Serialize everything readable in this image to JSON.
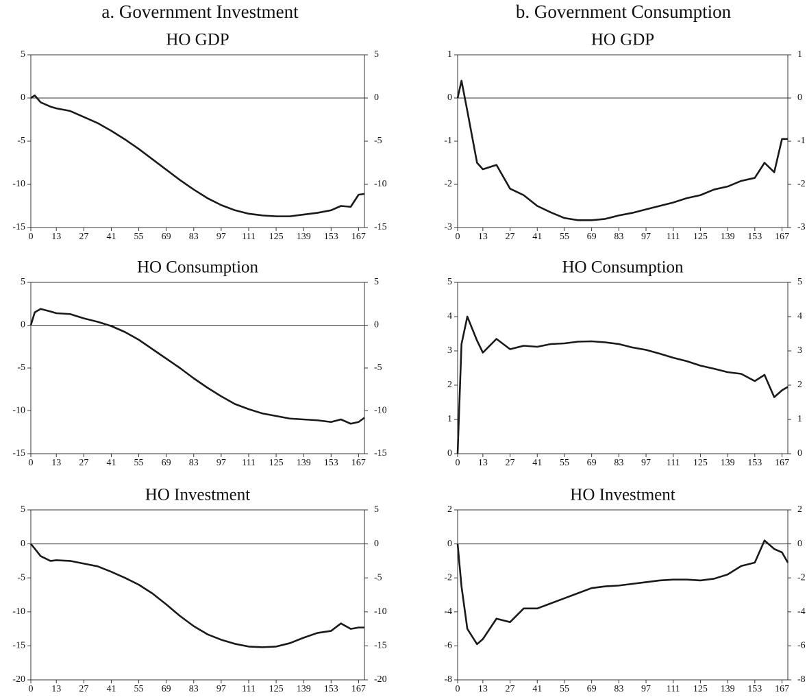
{
  "column_titles": [
    "a. Government Investment",
    "b. Government Consumption"
  ],
  "chart_data": [
    {
      "type": "line",
      "title": "HO GDP",
      "color": "#1a1a1a",
      "hline": 0,
      "x": [
        0,
        2,
        5,
        10,
        13,
        20,
        27,
        34,
        41,
        48,
        55,
        62,
        69,
        76,
        83,
        90,
        97,
        104,
        111,
        118,
        125,
        132,
        139,
        146,
        153,
        158,
        163,
        167,
        170
      ],
      "values": [
        0,
        0.3,
        -0.5,
        -1,
        -1.2,
        -1.5,
        -2.2,
        -2.9,
        -3.8,
        -4.8,
        -5.9,
        -7.1,
        -8.3,
        -9.5,
        -10.6,
        -11.6,
        -12.4,
        -13,
        -13.4,
        -13.6,
        -13.7,
        -13.7,
        -13.5,
        -13.3,
        -13,
        -12.5,
        -12.6,
        -11.2,
        -11.1
      ],
      "xlim": [
        0,
        170
      ],
      "xticks": [
        0,
        13,
        27,
        41,
        55,
        69,
        83,
        97,
        111,
        125,
        139,
        153,
        167
      ],
      "ylim": [
        -15,
        5
      ],
      "yticks": [
        -15,
        -10,
        -5,
        0,
        5
      ]
    },
    {
      "type": "line",
      "title": "HO Consumption",
      "color": "#1a1a1a",
      "hline": 0,
      "x": [
        0,
        2,
        5,
        10,
        13,
        20,
        27,
        34,
        41,
        48,
        55,
        62,
        69,
        76,
        83,
        90,
        97,
        104,
        111,
        118,
        125,
        132,
        139,
        146,
        153,
        158,
        163,
        167,
        170
      ],
      "values": [
        0,
        1.5,
        1.9,
        1.6,
        1.4,
        1.3,
        0.8,
        0.4,
        -0.1,
        -0.8,
        -1.7,
        -2.8,
        -3.9,
        -5,
        -6.2,
        -7.3,
        -8.3,
        -9.2,
        -9.8,
        -10.3,
        -10.6,
        -10.9,
        -11,
        -11.1,
        -11.3,
        -11,
        -11.5,
        -11.3,
        -10.8
      ],
      "xlim": [
        0,
        170
      ],
      "xticks": [
        0,
        13,
        27,
        41,
        55,
        69,
        83,
        97,
        111,
        125,
        139,
        153,
        167
      ],
      "ylim": [
        -15,
        5
      ],
      "yticks": [
        -15,
        -10,
        -5,
        0,
        5
      ]
    },
    {
      "type": "line",
      "title": "HO Investment",
      "color": "#1a1a1a",
      "hline": 0,
      "x": [
        0,
        2,
        5,
        10,
        13,
        20,
        27,
        34,
        41,
        48,
        55,
        62,
        69,
        76,
        83,
        90,
        97,
        104,
        111,
        118,
        125,
        132,
        139,
        146,
        153,
        158,
        163,
        167,
        170
      ],
      "values": [
        0,
        -0.7,
        -1.8,
        -2.5,
        -2.4,
        -2.5,
        -2.9,
        -3.3,
        -4.1,
        -5,
        -6,
        -7.3,
        -8.9,
        -10.6,
        -12.1,
        -13.3,
        -14.1,
        -14.7,
        -15.1,
        -15.2,
        -15.1,
        -14.6,
        -13.8,
        -13.1,
        -12.8,
        -11.7,
        -12.5,
        -12.3,
        -12.3
      ],
      "xlim": [
        0,
        170
      ],
      "xticks": [
        0,
        13,
        27,
        41,
        55,
        69,
        83,
        97,
        111,
        125,
        139,
        153,
        167
      ],
      "ylim": [
        -20,
        5
      ],
      "yticks": [
        -20,
        -15,
        -10,
        -5,
        0,
        5
      ]
    },
    {
      "type": "line",
      "title": "HO GDP",
      "color": "#1a1a1a",
      "hline": 0,
      "x": [
        0,
        2,
        5,
        10,
        13,
        20,
        27,
        34,
        41,
        48,
        55,
        62,
        69,
        76,
        83,
        90,
        97,
        104,
        111,
        118,
        125,
        132,
        139,
        146,
        153,
        158,
        163,
        167,
        170
      ],
      "values": [
        0,
        0.4,
        -0.3,
        -1.5,
        -1.65,
        -1.55,
        -2.1,
        -2.25,
        -2.5,
        -2.65,
        -2.78,
        -2.83,
        -2.83,
        -2.8,
        -2.72,
        -2.66,
        -2.58,
        -2.5,
        -2.42,
        -2.32,
        -2.25,
        -2.12,
        -2.05,
        -1.92,
        -1.85,
        -1.5,
        -1.72,
        -0.95,
        -0.95
      ],
      "xlim": [
        0,
        170
      ],
      "xticks": [
        0,
        13,
        27,
        41,
        55,
        69,
        83,
        97,
        111,
        125,
        139,
        153,
        167
      ],
      "ylim": [
        -3,
        1
      ],
      "yticks": [
        -3,
        -2,
        -1,
        0,
        1
      ]
    },
    {
      "type": "line",
      "title": "HO Consumption",
      "color": "#1a1a1a",
      "hline": 0,
      "x": [
        0,
        2,
        5,
        10,
        13,
        20,
        27,
        34,
        41,
        48,
        55,
        62,
        69,
        76,
        83,
        90,
        97,
        104,
        111,
        118,
        125,
        132,
        139,
        146,
        153,
        158,
        163,
        167,
        170
      ],
      "values": [
        0,
        3.2,
        4,
        3.3,
        2.95,
        3.35,
        3.05,
        3.15,
        3.12,
        3.2,
        3.22,
        3.27,
        3.28,
        3.25,
        3.2,
        3.1,
        3.03,
        2.92,
        2.8,
        2.7,
        2.57,
        2.48,
        2.38,
        2.33,
        2.12,
        2.3,
        1.65,
        1.85,
        1.95
      ],
      "xlim": [
        0,
        170
      ],
      "xticks": [
        0,
        13,
        27,
        41,
        55,
        69,
        83,
        97,
        111,
        125,
        139,
        153,
        167
      ],
      "ylim": [
        0,
        5
      ],
      "yticks": [
        0,
        1,
        2,
        3,
        4,
        5
      ]
    },
    {
      "type": "line",
      "title": "HO Investment",
      "color": "#1a1a1a",
      "hline": 0,
      "x": [
        0,
        2,
        5,
        10,
        13,
        20,
        27,
        34,
        41,
        48,
        55,
        62,
        69,
        76,
        83,
        90,
        97,
        104,
        111,
        118,
        125,
        132,
        139,
        146,
        153,
        158,
        163,
        167,
        170
      ],
      "values": [
        0,
        -2.5,
        -5,
        -5.9,
        -5.6,
        -4.4,
        -4.6,
        -3.8,
        -3.8,
        -3.5,
        -3.2,
        -2.9,
        -2.6,
        -2.5,
        -2.45,
        -2.35,
        -2.25,
        -2.15,
        -2.1,
        -2.1,
        -2.15,
        -2.05,
        -1.8,
        -1.3,
        -1.1,
        0.2,
        -0.3,
        -0.5,
        -1.1
      ],
      "xlim": [
        0,
        170
      ],
      "xticks": [
        0,
        13,
        27,
        41,
        55,
        69,
        83,
        97,
        111,
        125,
        139,
        153,
        167
      ],
      "ylim": [
        -8,
        2
      ],
      "yticks": [
        -8,
        -6,
        -4,
        -2,
        0,
        2
      ]
    }
  ]
}
